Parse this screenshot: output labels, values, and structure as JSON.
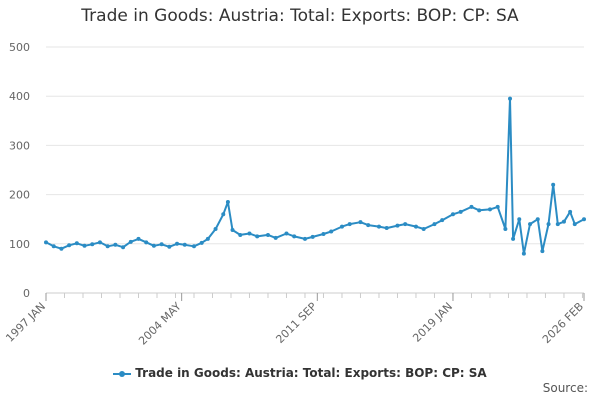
{
  "chart_data": {
    "type": "line",
    "title": "Trade in Goods: Austria: Total: Exports: BOP: CP: SA",
    "xlabel": "",
    "ylabel": "",
    "ylim": [
      0,
      500
    ],
    "yticks": [
      0,
      100,
      200,
      300,
      400,
      500
    ],
    "xlim": [
      "1997-01",
      "2026-02"
    ],
    "xticks": [
      "1997 JAN",
      "2004 MAY",
      "2011 SEP",
      "2019 JAN",
      "2026 FEB"
    ],
    "grid": "horizontal",
    "legend_position": "bottom",
    "series": [
      {
        "name": "Trade in Goods: Austria: Total: Exports: BOP: CP: SA",
        "color": "#2b8cc4",
        "points": [
          [
            "1997-01",
            103
          ],
          [
            "1997-06",
            95
          ],
          [
            "1997-11",
            90
          ],
          [
            "1998-04",
            97
          ],
          [
            "1998-09",
            101
          ],
          [
            "1999-02",
            96
          ],
          [
            "1999-07",
            99
          ],
          [
            "1999-12",
            103
          ],
          [
            "2000-05",
            95
          ],
          [
            "2000-10",
            98
          ],
          [
            "2001-03",
            93
          ],
          [
            "2001-08",
            104
          ],
          [
            "2002-01",
            110
          ],
          [
            "2002-06",
            103
          ],
          [
            "2002-11",
            96
          ],
          [
            "2003-04",
            99
          ],
          [
            "2003-09",
            94
          ],
          [
            "2004-02",
            100
          ],
          [
            "2004-07",
            98
          ],
          [
            "2005-01",
            95
          ],
          [
            "2005-06",
            102
          ],
          [
            "2005-10",
            110
          ],
          [
            "2006-03",
            130
          ],
          [
            "2006-08",
            160
          ],
          [
            "2006-11",
            185
          ],
          [
            "2007-02",
            128
          ],
          [
            "2007-07",
            118
          ],
          [
            "2008-01",
            121
          ],
          [
            "2008-06",
            115
          ],
          [
            "2009-01",
            118
          ],
          [
            "2009-06",
            112
          ],
          [
            "2010-01",
            121
          ],
          [
            "2010-06",
            115
          ],
          [
            "2011-01",
            110
          ],
          [
            "2011-06",
            114
          ],
          [
            "2012-01",
            120
          ],
          [
            "2012-06",
            125
          ],
          [
            "2013-01",
            135
          ],
          [
            "2013-06",
            140
          ],
          [
            "2014-01",
            144
          ],
          [
            "2014-06",
            138
          ],
          [
            "2015-01",
            135
          ],
          [
            "2015-06",
            132
          ],
          [
            "2016-01",
            137
          ],
          [
            "2016-06",
            140
          ],
          [
            "2017-01",
            135
          ],
          [
            "2017-06",
            130
          ],
          [
            "2018-01",
            140
          ],
          [
            "2018-06",
            148
          ],
          [
            "2019-01",
            160
          ],
          [
            "2019-06",
            165
          ],
          [
            "2020-01",
            175
          ],
          [
            "2020-06",
            168
          ],
          [
            "2021-01",
            170
          ],
          [
            "2021-06",
            175
          ],
          [
            "2021-11",
            130
          ],
          [
            "2022-02",
            395
          ],
          [
            "2022-04",
            110
          ],
          [
            "2022-08",
            150
          ],
          [
            "2022-11",
            80
          ],
          [
            "2023-03",
            140
          ],
          [
            "2023-08",
            150
          ],
          [
            "2023-11",
            85
          ],
          [
            "2024-03",
            140
          ],
          [
            "2024-06",
            220
          ],
          [
            "2024-09",
            140
          ],
          [
            "2025-01",
            145
          ],
          [
            "2025-05",
            165
          ],
          [
            "2025-08",
            140
          ],
          [
            "2026-02",
            150
          ]
        ]
      }
    ],
    "legend_label": "Trade in Goods: Austria: Total: Exports: BOP: CP: SA",
    "source_label": "Source:"
  }
}
